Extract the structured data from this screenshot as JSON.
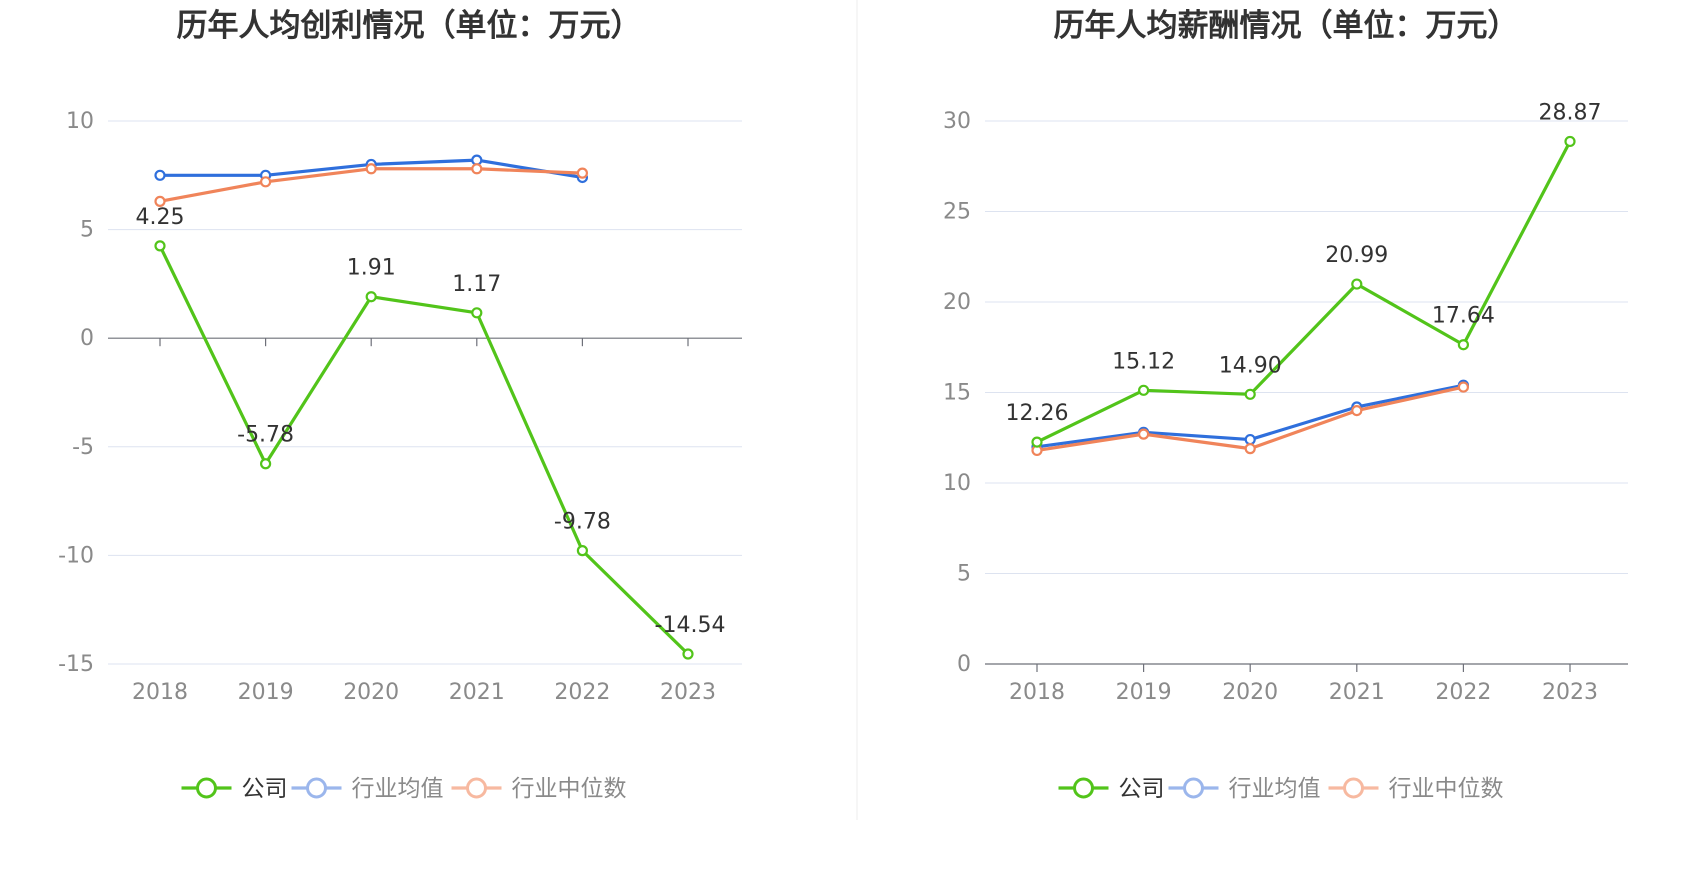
{
  "charts": [
    {
      "type": "line",
      "title": "历年人均创利情况（单位：万元）",
      "categories": [
        "2018",
        "2019",
        "2020",
        "2021",
        "2022",
        "2023"
      ],
      "ylim": [
        -15,
        10
      ],
      "yticks": [
        10,
        5,
        0,
        -5,
        -10,
        -15
      ],
      "grid": true,
      "legend_position": "bottom-center",
      "series": [
        {
          "name": "公司",
          "color": "#52c41a",
          "values": [
            4.25,
            -5.78,
            1.91,
            1.17,
            -9.78,
            -14.54
          ],
          "labels": [
            "4.25",
            "-5.78",
            "1.91",
            "1.17",
            "-9.78",
            "-14.54"
          ]
        },
        {
          "name": "行业均值",
          "color": "#2f6fdc",
          "values": [
            7.5,
            7.5,
            8.0,
            8.2,
            7.4,
            null
          ]
        },
        {
          "name": "行业中位数",
          "color": "#f0845a",
          "values": [
            6.3,
            7.2,
            7.8,
            7.8,
            7.6,
            null
          ]
        }
      ]
    },
    {
      "type": "line",
      "title": "历年人均薪酬情况（单位：万元）",
      "categories": [
        "2018",
        "2019",
        "2020",
        "2021",
        "2022",
        "2023"
      ],
      "ylim": [
        0,
        30
      ],
      "yticks": [
        30,
        25,
        20,
        15,
        10,
        5,
        0
      ],
      "grid": true,
      "legend_position": "bottom-center",
      "series": [
        {
          "name": "公司",
          "color": "#52c41a",
          "values": [
            12.26,
            15.12,
            14.9,
            20.99,
            17.64,
            28.87
          ],
          "labels": [
            "12.26",
            "15.12",
            "14.90",
            "20.99",
            "17.64",
            "28.87"
          ]
        },
        {
          "name": "行业均值",
          "color": "#2f6fdc",
          "values": [
            12.0,
            12.8,
            12.4,
            14.2,
            15.4,
            null
          ]
        },
        {
          "name": "行业中位数",
          "color": "#f0845a",
          "values": [
            11.8,
            12.7,
            11.9,
            14.0,
            15.3,
            null
          ]
        }
      ]
    }
  ],
  "legend_faded_colors": {
    "行业均值": "#9bb6ec",
    "行业中位数": "#f7b9a0"
  },
  "legend_text_colors": {
    "active": "#333333",
    "inactive": "#8a8a8a"
  }
}
